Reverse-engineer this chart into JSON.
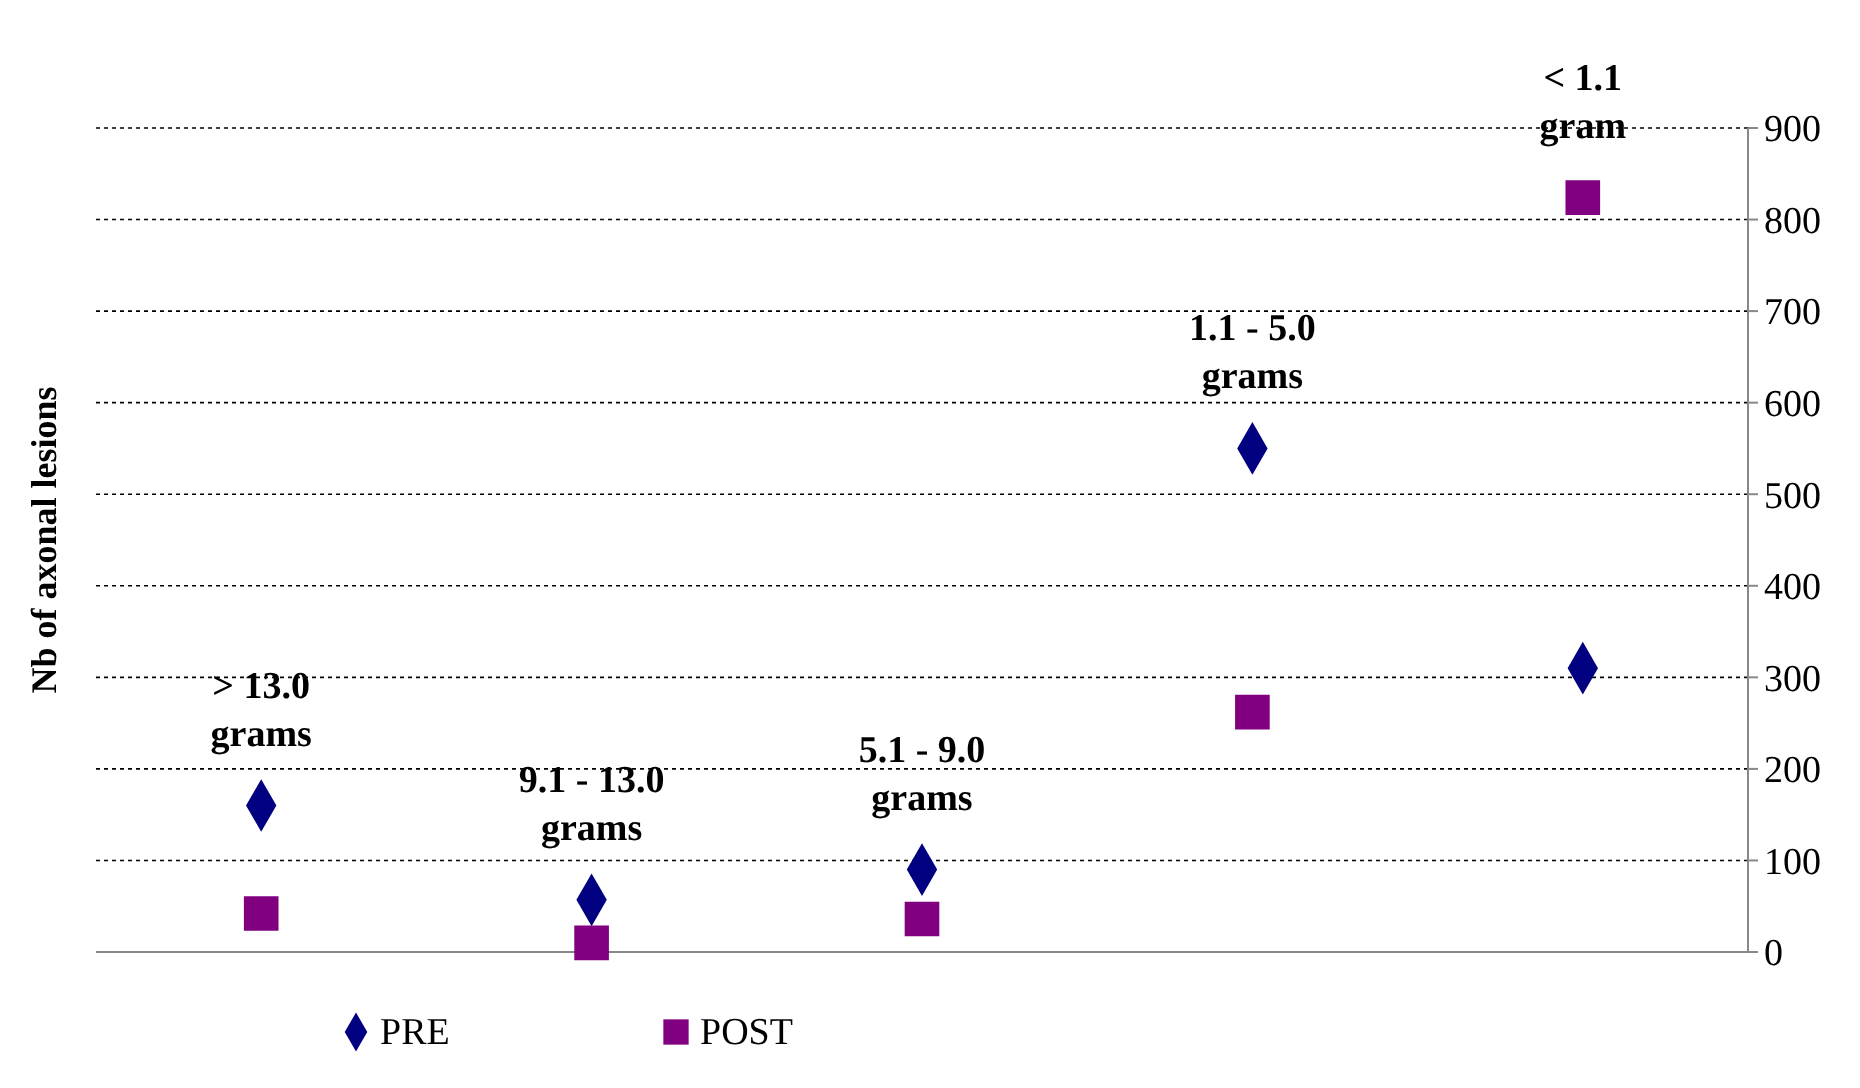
{
  "chart_data": {
    "type": "scatter",
    "ylabel": "Nb of axonal lesions",
    "categories": [
      null,
      null,
      null,
      null,
      null
    ],
    "series": [
      {
        "name": "PRE",
        "color": "#000080",
        "marker": "diamond",
        "values": [
          160,
          57,
          90,
          550,
          310
        ]
      },
      {
        "name": "POST",
        "color": "#800080",
        "marker": "square",
        "values": [
          42,
          10,
          36,
          262,
          824
        ]
      }
    ],
    "ylim": [
      0,
      900
    ],
    "yticks": [
      0,
      100,
      200,
      300,
      400,
      500,
      600,
      700,
      800,
      900
    ],
    "grid": "y",
    "legend": "bottom",
    "annotations": [
      "> 13.0\ngrams",
      "9.1 - 13.0\ngrams",
      "5.1 - 9.0\ngrams",
      "1.1 - 5.0\ngrams",
      "< 1.1\ngram"
    ]
  }
}
